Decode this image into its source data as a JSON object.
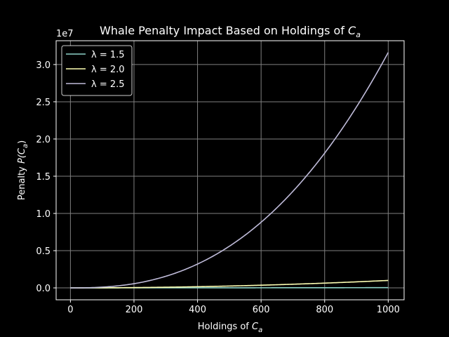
{
  "chart_data": {
    "type": "line",
    "title_main": "Whale Penalty Impact Based on Holdings of ",
    "title_var": "C",
    "title_sub": "a",
    "xlabel_main": "Holdings of ",
    "xlabel_var": "C",
    "xlabel_sub": "a",
    "ylabel_main": "Penalty ",
    "ylabel_var": "P(C",
    "ylabel_sub": "a",
    "ylabel_close": ")",
    "offset_label": "1e7",
    "xlim": [
      -45,
      1050
    ],
    "ylim": [
      -1.6,
      33.2
    ],
    "y_units": "1e6",
    "x_ticks": [
      0,
      200,
      400,
      600,
      800,
      1000
    ],
    "x_tick_labels": [
      "0",
      "200",
      "400",
      "600",
      "800",
      "1000"
    ],
    "y_ticks": [
      0,
      5,
      10,
      15,
      20,
      25,
      30
    ],
    "y_tick_labels": [
      "0.0",
      "0.5",
      "1.0",
      "1.5",
      "2.0",
      "2.5",
      "3.0"
    ],
    "grid": true,
    "legend_position": "upper-left",
    "series": [
      {
        "name": "λ = 1.5",
        "color": "#8dd3c7",
        "exponent": 1.5,
        "x_range": [
          0,
          1000
        ]
      },
      {
        "name": "λ = 2.0",
        "color": "#feffb3",
        "exponent": 2.0,
        "x_range": [
          0,
          1000
        ]
      },
      {
        "name": "λ = 2.5",
        "color": "#bfbbd9",
        "exponent": 2.5,
        "x_range": [
          0,
          1000
        ]
      }
    ],
    "formula": "P = x^λ"
  }
}
